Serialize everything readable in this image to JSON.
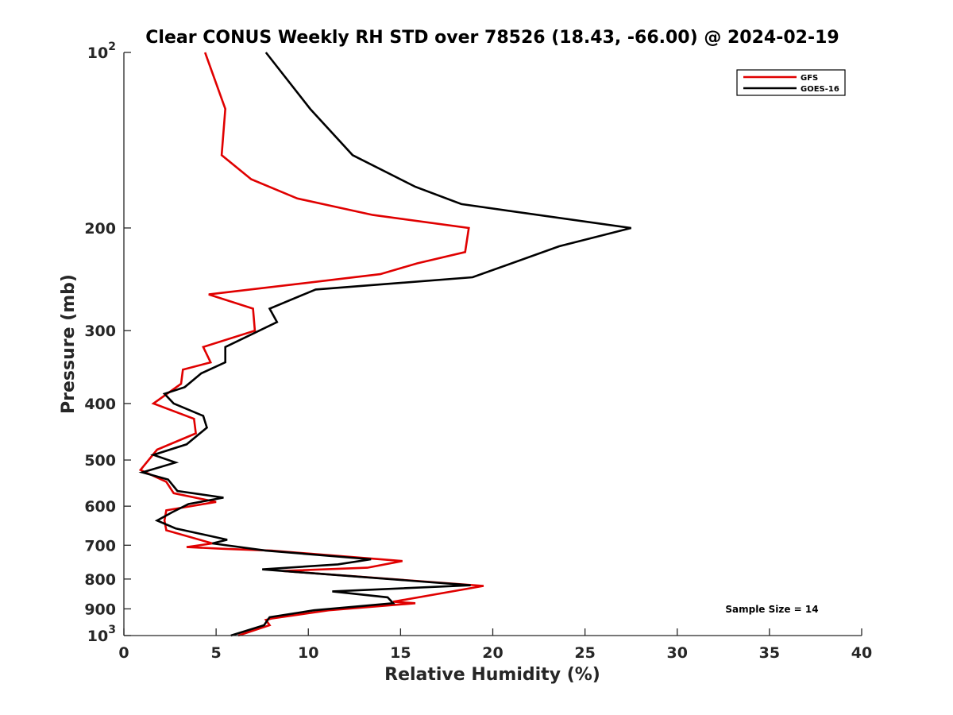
{
  "chart_data": {
    "type": "line",
    "title": "Clear CONUS Weekly RH STD over 78526 (18.43, -66.00) @ 2024-02-19",
    "xlabel": "Relative Humidity (%)",
    "ylabel": "Pressure (mb)",
    "xlim": [
      0,
      40
    ],
    "ylim": [
      100,
      1000
    ],
    "yscale": "log",
    "y_reversed": true,
    "grid": false,
    "legend_position": "top-right",
    "x_ticks": [
      0,
      5,
      10,
      15,
      20,
      25,
      30,
      35,
      40
    ],
    "x_tick_labels": [
      "0",
      "5",
      "10",
      "15",
      "20",
      "25",
      "30",
      "35",
      "40"
    ],
    "y_ticks": [
      100,
      200,
      300,
      400,
      500,
      600,
      700,
      800,
      900,
      1000
    ],
    "y_tick_labels": [
      {
        "base": "10",
        "exp": "2"
      },
      {
        "base": "200",
        "exp": ""
      },
      {
        "base": "300",
        "exp": ""
      },
      {
        "base": "400",
        "exp": ""
      },
      {
        "base": "500",
        "exp": ""
      },
      {
        "base": "600",
        "exp": ""
      },
      {
        "base": "700",
        "exp": ""
      },
      {
        "base": "800",
        "exp": ""
      },
      {
        "base": "900",
        "exp": ""
      },
      {
        "base": "10",
        "exp": "3"
      }
    ],
    "annotation": "Sample Size = 14",
    "series": [
      {
        "name": "GFS",
        "color": "#e00000",
        "x": [
          4.4,
          5.5,
          5.3,
          6.9,
          9.4,
          13.5,
          18.7,
          18.5,
          15.9,
          13.9,
          4.6,
          7.0,
          7.1,
          4.3,
          4.7,
          3.2,
          3.1,
          1.6,
          3.8,
          3.9,
          1.8,
          0.9,
          2.3,
          2.7,
          5.0,
          2.3,
          2.2,
          2.3,
          4.8,
          3.4,
          5.4,
          8.0,
          15.1,
          13.2,
          8.6,
          19.5,
          14.6,
          15.8,
          11.1,
          8.0,
          7.7,
          7.9,
          6.2
        ],
        "y": [
          100,
          125,
          150,
          165,
          178,
          190,
          200,
          220,
          230,
          240,
          260,
          275,
          300,
          320,
          340,
          350,
          370,
          400,
          425,
          450,
          480,
          520,
          545,
          570,
          590,
          610,
          635,
          660,
          695,
          705,
          710,
          715,
          745,
          765,
          775,
          822,
          875,
          880,
          905,
          935,
          940,
          960,
          1000
        ]
      },
      {
        "name": "GOES-16",
        "color": "#000000",
        "x": [
          7.7,
          10.1,
          12.4,
          15.8,
          18.3,
          27.5,
          23.6,
          18.9,
          10.4,
          7.9,
          8.3,
          5.5,
          5.5,
          4.2,
          3.3,
          2.2,
          2.7,
          4.3,
          4.5,
          3.4,
          1.6,
          2.8,
          1.0,
          2.4,
          2.9,
          5.4,
          3.5,
          2.6,
          1.8,
          2.8,
          5.6,
          4.8,
          7.7,
          13.4,
          11.6,
          7.5,
          18.8,
          11.3,
          14.3,
          14.6,
          10.3,
          7.9,
          7.7,
          7.6,
          5.8
        ],
        "y": [
          100,
          125,
          150,
          170,
          182,
          200,
          215,
          243,
          255,
          275,
          290,
          320,
          340,
          355,
          375,
          385,
          400,
          420,
          440,
          470,
          490,
          505,
          525,
          540,
          565,
          580,
          595,
          615,
          635,
          655,
          685,
          695,
          715,
          740,
          755,
          770,
          820,
          840,
          860,
          880,
          905,
          930,
          950,
          960,
          1000
        ]
      }
    ]
  }
}
